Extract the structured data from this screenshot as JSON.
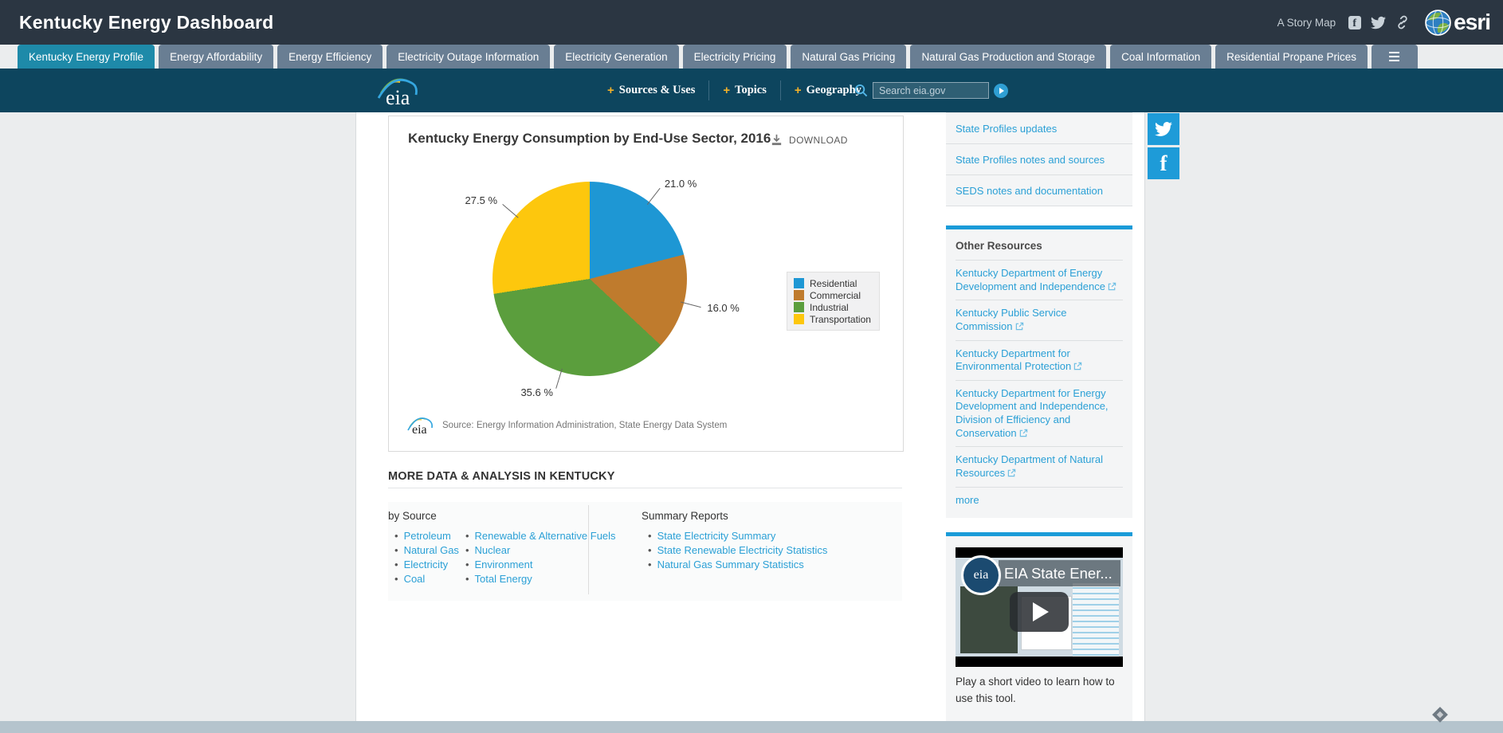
{
  "header": {
    "title": "Kentucky Energy Dashboard",
    "story_map": "A Story Map",
    "brand": "esri"
  },
  "tabs": [
    {
      "label": "Kentucky Energy Profile",
      "active": true
    },
    {
      "label": "Energy Affordability",
      "active": false
    },
    {
      "label": "Energy Efficiency",
      "active": false
    },
    {
      "label": "Electricity Outage Information",
      "active": false
    },
    {
      "label": "Electricity Generation",
      "active": false
    },
    {
      "label": "Electricity Pricing",
      "active": false
    },
    {
      "label": "Natural Gas Pricing",
      "active": false
    },
    {
      "label": "Natural Gas Production and Storage",
      "active": false
    },
    {
      "label": "Coal Information",
      "active": false
    },
    {
      "label": "Residential Propane Prices",
      "active": false
    }
  ],
  "eia_nav": {
    "logo_text": "eia",
    "items": [
      "Sources & Uses",
      "Topics",
      "Geography"
    ],
    "search_placeholder": "Search eia.gov"
  },
  "chart_panel": {
    "download_label": "DOWNLOAD",
    "logo_text": "eia",
    "source_note": "Source: Energy Information Administration, State Energy Data System"
  },
  "chart_data": {
    "type": "pie",
    "title": "Kentucky Energy Consumption by End-Use Sector, 2016",
    "categories": [
      "Residential",
      "Commercial",
      "Industrial",
      "Transportation"
    ],
    "values": [
      21.0,
      16.0,
      35.6,
      27.5
    ],
    "unit": "%",
    "labels": [
      "21.0 %",
      "16.0 %",
      "35.6 %",
      "27.5 %"
    ],
    "colors": [
      "#1e97d4",
      "#bf7b2d",
      "#5b9e3d",
      "#fdc70d"
    ],
    "start_angle_deg": 0,
    "direction": "clockwise",
    "legend_position": "right"
  },
  "more_data": {
    "heading": "MORE DATA & ANALYSIS IN KENTUCKY",
    "by_source": {
      "heading": "by Source",
      "columns": [
        [
          "Petroleum",
          "Natural Gas",
          "Electricity",
          "Coal"
        ],
        [
          "Renewable & Alternative Fuels",
          "Nuclear",
          "Environment",
          "Total Energy"
        ]
      ]
    },
    "summary_reports": {
      "heading": "Summary Reports",
      "links": [
        "State Electricity Summary",
        "State Renewable Electricity Statistics",
        "Natural Gas Summary Statistics"
      ]
    }
  },
  "sidebar": {
    "top_links": [
      "State Profiles updates",
      "State Profiles notes and sources",
      "SEDS notes and documentation"
    ],
    "other_resources": {
      "heading": "Other Resources",
      "links": [
        "Kentucky Department of Energy Development and Independence",
        "Kentucky Public Service Commission",
        "Kentucky Department for Environmental Protection",
        "Kentucky Department for Energy Development and Independence, Division of Efficiency and Conservation",
        "Kentucky Department of Natural Resources"
      ],
      "more_label": "more"
    },
    "video": {
      "logo_text": "eia",
      "title": "EIA State Ener...",
      "caption": "Play a short video to learn how to use this tool."
    }
  },
  "colors": {
    "accent": "#1a9bd8",
    "link": "#2ba0d6",
    "active_tab": "#1e8aa9",
    "inactive_tab": "#697e93",
    "eia_bar": "#0d455e",
    "header_bg": "#2b3642",
    "footer": "#b5c4cd"
  }
}
